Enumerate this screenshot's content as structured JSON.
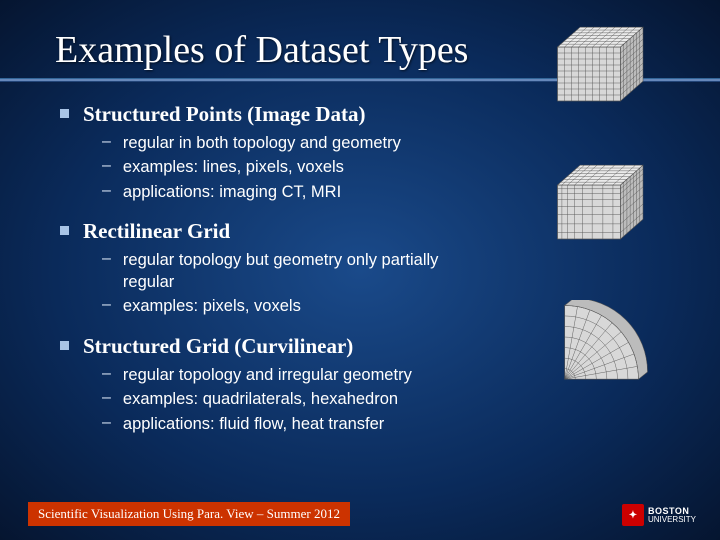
{
  "title": "Examples of Dataset Types",
  "sections": [
    {
      "heading": "Structured Points (Image Data)",
      "items": [
        "regular in both topology and geometry",
        "examples:  lines, pixels, voxels",
        "applications: imaging CT, MRI"
      ]
    },
    {
      "heading": "Rectilinear Grid",
      "items": [
        "regular topology but geometry only partially regular",
        "examples: pixels, voxels"
      ]
    },
    {
      "heading": "Structured Grid (Curvilinear)",
      "items": [
        "regular topology and irregular geometry",
        "examples: quadrilaterals, hexahedron",
        "applications: fluid flow, heat transfer"
      ]
    }
  ],
  "footer": "Scientific Visualization Using Para. View – Summer 2012",
  "logo": {
    "name": "BOSTON",
    "sub": "UNIVERSITY"
  },
  "colors": {
    "bg_center": "#1a4a8a",
    "bg_edge": "#051530",
    "rule": "#6688bb",
    "bullet": "#a8c4e6",
    "footer_bg": "#cc3300",
    "logo_bg": "#cc0000"
  },
  "figures": {
    "cube_uniform": {
      "nx": 9,
      "ny": 9,
      "line": "#555555",
      "fill": "#d8d8d8"
    },
    "cube_rectilinear": {
      "cols": [
        0,
        0.07,
        0.16,
        0.27,
        0.4,
        0.55,
        0.72,
        0.88,
        1.0
      ],
      "line": "#555555",
      "fill": "#d8d8d8"
    },
    "curvilinear": {
      "nr": 7,
      "ntheta": 9,
      "line": "#555555",
      "fill": "#d8d8d8"
    }
  }
}
